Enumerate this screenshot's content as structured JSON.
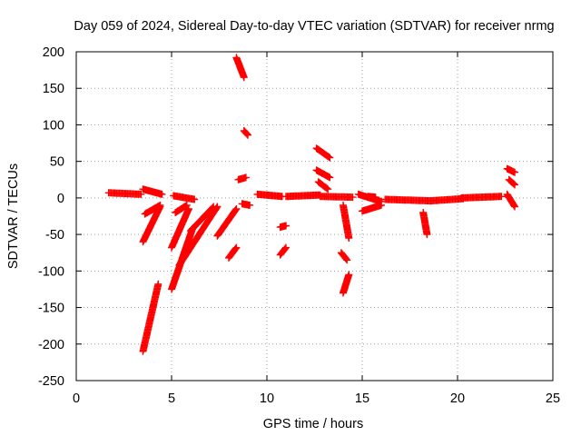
{
  "chart_data": {
    "type": "scatter",
    "title": "Day 059 of 2024, Sidereal Day-to-day VTEC variation (SDTVAR) for receiver nrmg",
    "xlabel": "GPS time / hours",
    "ylabel": "SDTVAR / TECUs",
    "xlim": [
      0,
      25
    ],
    "ylim": [
      -250,
      200
    ],
    "x_ticks": [
      0,
      5,
      10,
      15,
      20,
      25
    ],
    "y_ticks": [
      -250,
      -200,
      -150,
      -100,
      -50,
      0,
      50,
      100,
      150,
      200
    ],
    "grid": true,
    "marker": "+",
    "color": "#ff0000",
    "segments": [
      {
        "name": "arc-1",
        "x_start": 1.7,
        "x_end": 3.4,
        "y_start": 7,
        "y_end": 5
      },
      {
        "name": "arc-2",
        "x_start": 3.5,
        "x_end": 4.5,
        "y_start": 12,
        "y_end": 5
      },
      {
        "name": "arc-3",
        "x_start": 3.5,
        "x_end": 4.3,
        "y_start": -210,
        "y_end": -118
      },
      {
        "name": "arc-4",
        "x_start": 3.5,
        "x_end": 4.4,
        "y_start": -60,
        "y_end": -12
      },
      {
        "name": "arc-5",
        "x_start": 3.6,
        "x_end": 4.4,
        "y_start": -22,
        "y_end": -10
      },
      {
        "name": "arc-6",
        "x_start": 5.0,
        "x_end": 6.1,
        "y_start": -125,
        "y_end": -42
      },
      {
        "name": "arc-7",
        "x_start": 5.0,
        "x_end": 5.9,
        "y_start": -68,
        "y_end": -15
      },
      {
        "name": "arc-8",
        "x_start": 5.1,
        "x_end": 6.2,
        "y_start": 3,
        "y_end": -2
      },
      {
        "name": "arc-9",
        "x_start": 5.2,
        "x_end": 5.8,
        "y_start": -20,
        "y_end": -10
      },
      {
        "name": "arc-10",
        "x_start": 5.4,
        "x_end": 7.4,
        "y_start": -92,
        "y_end": -12
      },
      {
        "name": "arc-11",
        "x_start": 6.0,
        "x_end": 7.2,
        "y_start": -45,
        "y_end": -12
      },
      {
        "name": "arc-12",
        "x_start": 7.4,
        "x_end": 8.4,
        "y_start": -52,
        "y_end": -15
      },
      {
        "name": "arc-13",
        "x_start": 8.0,
        "x_end": 8.4,
        "y_start": -82,
        "y_end": -68
      },
      {
        "name": "arc-14",
        "x_start": 8.4,
        "x_end": 8.8,
        "y_start": 192,
        "y_end": 165
      },
      {
        "name": "arc-15",
        "x_start": 8.8,
        "x_end": 9.0,
        "y_start": 92,
        "y_end": 86
      },
      {
        "name": "arc-16",
        "x_start": 8.5,
        "x_end": 8.9,
        "y_start": 25,
        "y_end": 28
      },
      {
        "name": "arc-17",
        "x_start": 8.7,
        "x_end": 9.1,
        "y_start": -8,
        "y_end": -10
      },
      {
        "name": "arc-18",
        "x_start": 9.5,
        "x_end": 10.8,
        "y_start": 5,
        "y_end": 2
      },
      {
        "name": "arc-19",
        "x_start": 10.7,
        "x_end": 11.0,
        "y_start": -40,
        "y_end": -38
      },
      {
        "name": "arc-20",
        "x_start": 10.7,
        "x_end": 11.0,
        "y_start": -78,
        "y_end": -68
      },
      {
        "name": "arc-21",
        "x_start": 11.0,
        "x_end": 12.8,
        "y_start": 2,
        "y_end": 4
      },
      {
        "name": "arc-22",
        "x_start": 12.6,
        "x_end": 13.3,
        "y_start": 68,
        "y_end": 55
      },
      {
        "name": "arc-23",
        "x_start": 12.6,
        "x_end": 13.3,
        "y_start": 38,
        "y_end": 28
      },
      {
        "name": "arc-24",
        "x_start": 12.7,
        "x_end": 13.2,
        "y_start": 22,
        "y_end": 12
      },
      {
        "name": "arc-25",
        "x_start": 12.8,
        "x_end": 14.5,
        "y_start": 2,
        "y_end": 1
      },
      {
        "name": "arc-26",
        "x_start": 14.0,
        "x_end": 14.3,
        "y_start": -10,
        "y_end": -55
      },
      {
        "name": "arc-27",
        "x_start": 13.9,
        "x_end": 14.2,
        "y_start": -75,
        "y_end": -85
      },
      {
        "name": "arc-28",
        "x_start": 14.0,
        "x_end": 14.3,
        "y_start": -130,
        "y_end": -105
      },
      {
        "name": "arc-29",
        "x_start": 14.8,
        "x_end": 16.0,
        "y_start": 5,
        "y_end": -5
      },
      {
        "name": "arc-30",
        "x_start": 15.0,
        "x_end": 16.0,
        "y_start": -18,
        "y_end": -10
      },
      {
        "name": "arc-31",
        "x_start": 15.3,
        "x_end": 15.7,
        "y_start": 2,
        "y_end": 1
      },
      {
        "name": "arc-32",
        "x_start": 16.2,
        "x_end": 18.6,
        "y_start": -2,
        "y_end": -4
      },
      {
        "name": "arc-33",
        "x_start": 18.2,
        "x_end": 18.4,
        "y_start": -20,
        "y_end": -50
      },
      {
        "name": "arc-34",
        "x_start": 18.6,
        "x_end": 20.3,
        "y_start": -4,
        "y_end": -1
      },
      {
        "name": "arc-35",
        "x_start": 20.2,
        "x_end": 22.3,
        "y_start": 0,
        "y_end": 2
      },
      {
        "name": "arc-36",
        "x_start": 22.6,
        "x_end": 23.0,
        "y_start": 40,
        "y_end": 35
      },
      {
        "name": "arc-37",
        "x_start": 22.7,
        "x_end": 23.0,
        "y_start": 25,
        "y_end": 18
      },
      {
        "name": "arc-38",
        "x_start": 22.6,
        "x_end": 23.0,
        "y_start": 5,
        "y_end": -12
      }
    ]
  }
}
